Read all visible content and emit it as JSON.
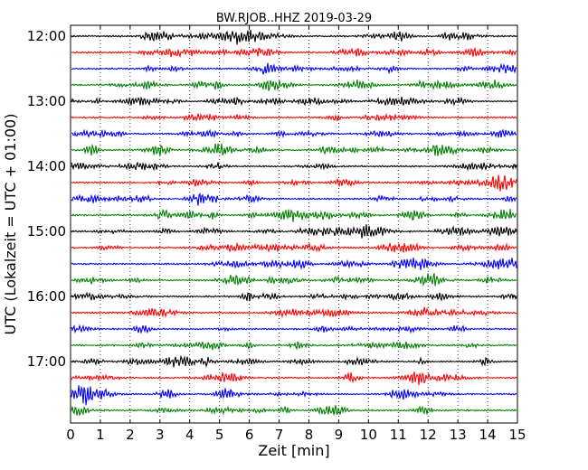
{
  "chart_data": {
    "type": "line",
    "title": "BW.RJOB..HHZ 2019-03-29",
    "xlabel": "Zeit  [min]",
    "ylabel": "UTC (Lokalzeit = UTC + 01:00)",
    "xlim": [
      0,
      15
    ],
    "x_ticks": [
      "0",
      "1",
      "2",
      "3",
      "4",
      "5",
      "6",
      "7",
      "8",
      "9",
      "10",
      "11",
      "12",
      "13",
      "14",
      "15"
    ],
    "y_ticks": [
      "12:00",
      "13:00",
      "14:00",
      "15:00",
      "16:00",
      "17:00"
    ],
    "traces_per_hour": 4,
    "trace_start_times": [
      "12:00",
      "12:15",
      "12:30",
      "12:45",
      "13:00",
      "13:15",
      "13:30",
      "13:45",
      "14:00",
      "14:15",
      "14:30",
      "14:45",
      "15:00",
      "15:15",
      "15:30",
      "15:45",
      "16:00",
      "16:15",
      "16:30",
      "16:45",
      "17:00",
      "17:15",
      "17:30",
      "17:45"
    ],
    "trace_color_cycle": [
      "#000000",
      "#ff0000",
      "#0000ff",
      "#008000"
    ],
    "grid_x": "dotted vertical lines at each minute"
  }
}
